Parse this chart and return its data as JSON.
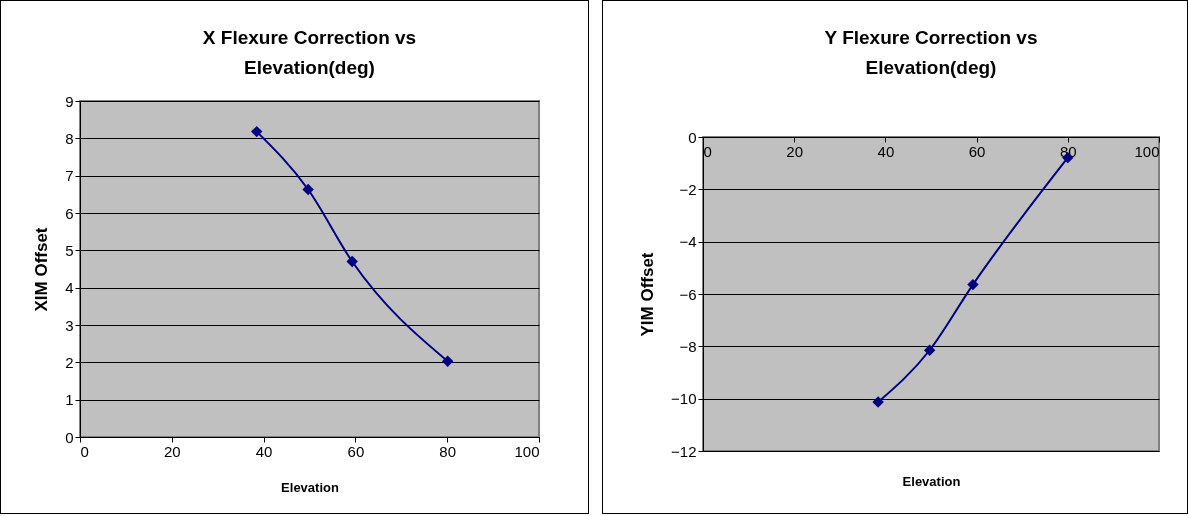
{
  "chart_data": [
    {
      "type": "line",
      "title": "X Flexure Correction vs Elevation(deg)",
      "xlabel": "Elevation",
      "ylabel": "XIM Offset",
      "x": [
        38.5,
        49.7,
        59.3,
        80.1
      ],
      "series": [
        {
          "color": "#000080",
          "values": [
            8.18,
            6.63,
            4.7,
            2.03
          ]
        }
      ],
      "xlim": [
        0,
        100
      ],
      "ylim": [
        0,
        9
      ],
      "xticks": [
        0,
        20,
        40,
        60,
        80,
        100
      ],
      "yticks": [
        0,
        1,
        2,
        3,
        4,
        5,
        6,
        7,
        8,
        9
      ],
      "grid": "y",
      "marker": "diamond"
    },
    {
      "type": "line",
      "title": "Y Flexure Correction vs Elevation(deg)",
      "xlabel": "Elevation",
      "ylabel": "YIM Offset",
      "x": [
        38.4,
        49.7,
        59.2,
        80.0
      ],
      "series": [
        {
          "color": "#000080",
          "values": [
            -10.13,
            -8.15,
            -5.64,
            -0.79
          ]
        }
      ],
      "xlim": [
        0,
        100
      ],
      "ylim": [
        -12,
        0
      ],
      "xticks": [
        0,
        20,
        40,
        60,
        80,
        100
      ],
      "yticks": [
        -12,
        -10,
        -8,
        -6,
        -4,
        -2,
        0
      ],
      "grid": "y",
      "marker": "diamond"
    }
  ]
}
